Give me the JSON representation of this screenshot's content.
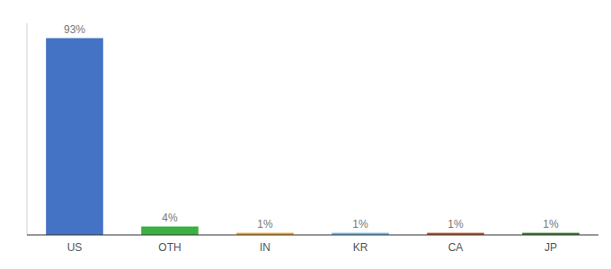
{
  "chart_data": {
    "type": "bar",
    "categories": [
      "US",
      "OTH",
      "IN",
      "KR",
      "CA",
      "JP"
    ],
    "values": [
      93,
      4,
      1,
      1,
      1,
      1
    ],
    "value_labels": [
      "93%",
      "4%",
      "1%",
      "1%",
      "1%",
      "1%"
    ],
    "colors": [
      "#4472c4",
      "#3cb043",
      "#e8a020",
      "#6ab4e8",
      "#b84c20",
      "#2e8020"
    ],
    "ylim": [
      0,
      100
    ],
    "grid": false,
    "data_labels": true,
    "tick_labels": "x"
  }
}
